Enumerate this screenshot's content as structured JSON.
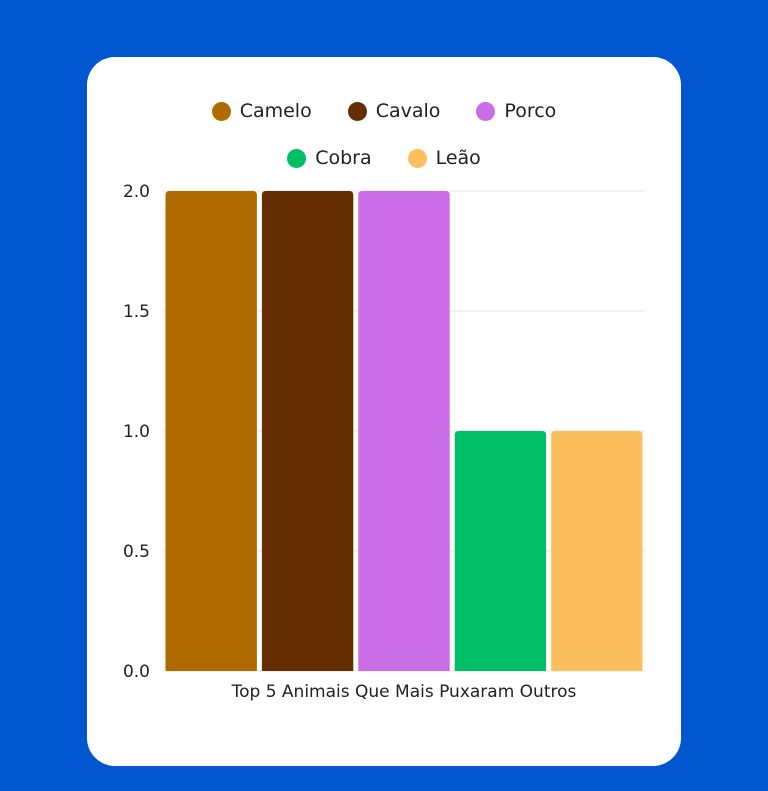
{
  "chart_data": {
    "type": "bar",
    "categories": [
      "Top 5 Animais Que Mais Puxaram Outros"
    ],
    "series": [
      {
        "name": "Camelo",
        "values": [
          2.0
        ],
        "color": "#b06b00"
      },
      {
        "name": "Cavalo",
        "values": [
          2.0
        ],
        "color": "#652e00"
      },
      {
        "name": "Porco",
        "values": [
          2.0
        ],
        "color": "#c96ce6"
      },
      {
        "name": "Cobra",
        "values": [
          1.0
        ],
        "color": "#00bf66"
      },
      {
        "name": "Leão",
        "values": [
          1.0
        ],
        "color": "#fdbf5d"
      }
    ],
    "yticks": [
      "0.0",
      "0.5",
      "1.0",
      "1.5",
      "2.0"
    ],
    "ylim": [
      0,
      2.0
    ],
    "grid": true,
    "legend_position": "top"
  },
  "colors": {
    "background": "#0057d0",
    "card": "#ffffff",
    "gridline": "#e6e6e6"
  }
}
